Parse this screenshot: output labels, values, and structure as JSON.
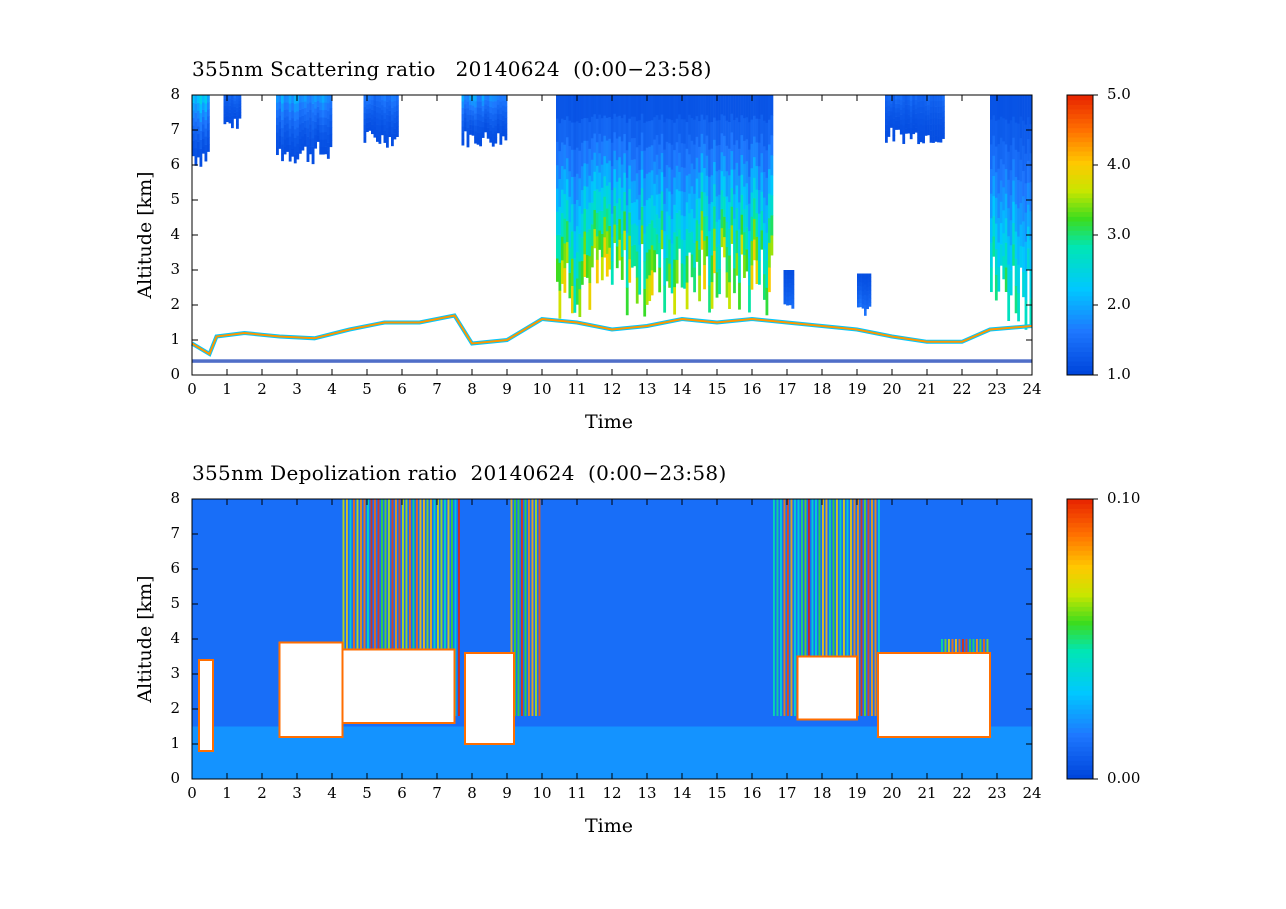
{
  "chart_data": [
    {
      "type": "heatmap",
      "title": "355nm Scattering ratio   20140624  (0:00−23:58)",
      "xlabel": "Time",
      "ylabel": "Altitude [km]",
      "xlim": [
        0,
        24
      ],
      "ylim": [
        0,
        8
      ],
      "x_ticks": [
        "0",
        "1",
        "2",
        "3",
        "4",
        "5",
        "6",
        "7",
        "8",
        "9",
        "10",
        "11",
        "12",
        "13",
        "14",
        "15",
        "16",
        "17",
        "18",
        "19",
        "20",
        "21",
        "22",
        "23",
        "24"
      ],
      "y_ticks": [
        "0",
        "1",
        "2",
        "3",
        "4",
        "5",
        "6",
        "7",
        "8"
      ],
      "colorbar": {
        "min": 1.0,
        "max": 5.0,
        "ticks": [
          "1.0",
          "2.0",
          "3.0",
          "4.0",
          "5.0"
        ]
      },
      "boundary_layer_top_km": [
        [
          0.0,
          0.9
        ],
        [
          0.5,
          0.6
        ],
        [
          0.7,
          1.1
        ],
        [
          1.5,
          1.2
        ],
        [
          2.5,
          1.1
        ],
        [
          3.5,
          1.05
        ],
        [
          4.5,
          1.3
        ],
        [
          5.5,
          1.5
        ],
        [
          6.5,
          1.5
        ],
        [
          7.5,
          1.7
        ],
        [
          8.0,
          0.9
        ],
        [
          9.0,
          1.0
        ],
        [
          10.0,
          1.6
        ],
        [
          11.0,
          1.5
        ],
        [
          12.0,
          1.3
        ],
        [
          13.0,
          1.4
        ],
        [
          14.0,
          1.6
        ],
        [
          15.0,
          1.5
        ],
        [
          16.0,
          1.6
        ],
        [
          17.0,
          1.5
        ],
        [
          18.0,
          1.4
        ],
        [
          19.0,
          1.3
        ],
        [
          20.0,
          1.1
        ],
        [
          21.0,
          0.95
        ],
        [
          22.0,
          0.95
        ],
        [
          22.8,
          1.3
        ],
        [
          24.0,
          1.4
        ]
      ],
      "cloud_columns": [
        {
          "start": 0.0,
          "end": 0.5,
          "base_km": 5.9,
          "top_km": 8.0,
          "peak": 2.8
        },
        {
          "start": 0.9,
          "end": 1.4,
          "base_km": 7.0,
          "top_km": 8.0,
          "peak": 1.6
        },
        {
          "start": 2.4,
          "end": 4.0,
          "base_km": 6.0,
          "top_km": 8.0,
          "peak": 2.3
        },
        {
          "start": 4.9,
          "end": 5.9,
          "base_km": 6.5,
          "top_km": 8.0,
          "peak": 1.8
        },
        {
          "start": 7.7,
          "end": 9.0,
          "base_km": 6.5,
          "top_km": 8.0,
          "peak": 2.3
        },
        {
          "start": 10.4,
          "end": 16.6,
          "base_km": 1.6,
          "top_km": 8.0,
          "peak": 4.0
        },
        {
          "start": 16.9,
          "end": 17.2,
          "base_km": 1.8,
          "top_km": 3.0,
          "peak": 1.6
        },
        {
          "start": 19.0,
          "end": 19.4,
          "base_km": 1.7,
          "top_km": 2.9,
          "peak": 1.7
        },
        {
          "start": 19.8,
          "end": 21.5,
          "base_km": 6.6,
          "top_km": 8.0,
          "peak": 1.6
        },
        {
          "start": 22.8,
          "end": 24.0,
          "base_km": 1.3,
          "top_km": 8.0,
          "peak": 3.2
        }
      ]
    },
    {
      "type": "heatmap",
      "title": "355nm Depolization ratio  20140624  (0:00−23:58)",
      "xlabel": "Time",
      "ylabel": "Altitude [km]",
      "xlim": [
        0,
        24
      ],
      "ylim": [
        0,
        8
      ],
      "x_ticks": [
        "0",
        "1",
        "2",
        "3",
        "4",
        "5",
        "6",
        "7",
        "8",
        "9",
        "10",
        "11",
        "12",
        "13",
        "14",
        "15",
        "16",
        "17",
        "18",
        "19",
        "20",
        "21",
        "22",
        "23",
        "24"
      ],
      "y_ticks": [
        "0",
        "1",
        "2",
        "3",
        "4",
        "5",
        "6",
        "7",
        "8"
      ],
      "colorbar": {
        "min": 0.0,
        "max": 0.1,
        "ticks": [
          "0.00",
          "0.10"
        ]
      },
      "masked_regions": [
        {
          "start": 0.2,
          "end": 0.6,
          "bottom_km": 0.8,
          "top_km": 3.4
        },
        {
          "start": 2.5,
          "end": 4.3,
          "bottom_km": 1.2,
          "top_km": 3.9
        },
        {
          "start": 4.3,
          "end": 7.5,
          "bottom_km": 1.6,
          "top_km": 3.7
        },
        {
          "start": 7.8,
          "end": 9.2,
          "bottom_km": 1.0,
          "top_km": 3.6
        },
        {
          "start": 17.3,
          "end": 19.0,
          "bottom_km": 1.7,
          "top_km": 3.5
        },
        {
          "start": 19.6,
          "end": 22.8,
          "bottom_km": 1.2,
          "top_km": 3.6
        }
      ],
      "high_depol_columns": [
        {
          "start": 4.3,
          "end": 7.7,
          "top_km": 8.0
        },
        {
          "start": 9.1,
          "end": 10.0,
          "top_km": 8.0
        },
        {
          "start": 16.6,
          "end": 19.7,
          "top_km": 8.0
        },
        {
          "start": 21.4,
          "end": 22.8,
          "top_km": 4.0
        }
      ]
    }
  ]
}
